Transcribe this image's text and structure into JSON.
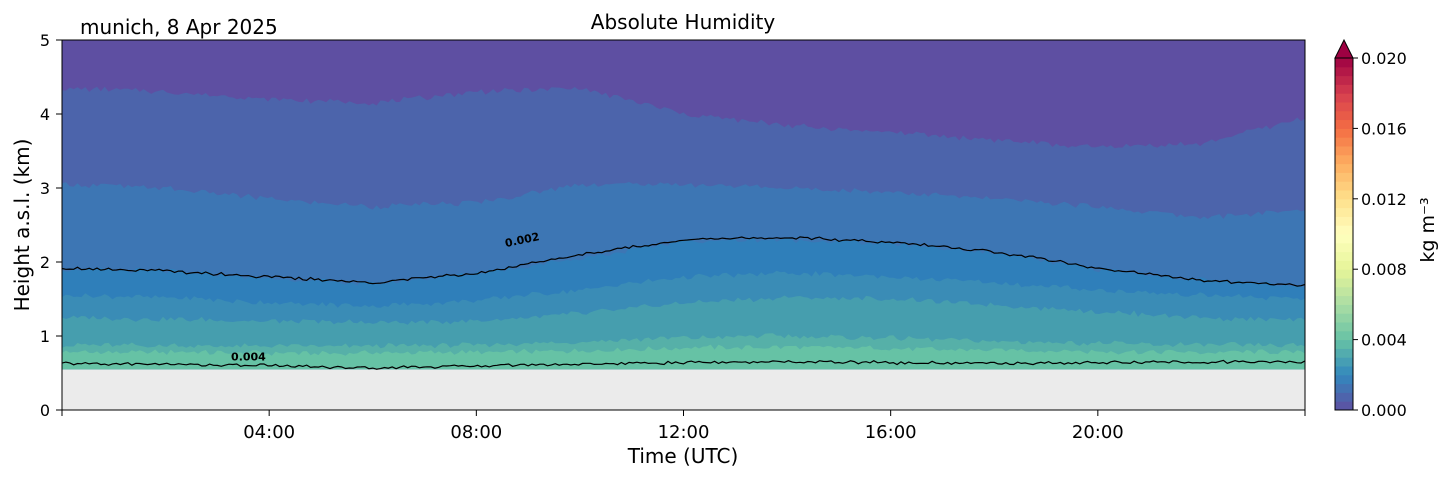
{
  "chart_data": {
    "type": "heatmap",
    "title": "Absolute Humidity",
    "subtitle": "munich, 8 Apr 2025",
    "xlabel": "Time (UTC)",
    "ylabel": "Height a.s.l. (km)",
    "xlim": [
      0,
      24
    ],
    "ylim": [
      0,
      5
    ],
    "x_ticks": [
      {
        "value": 4,
        "label": "04:00"
      },
      {
        "value": 8,
        "label": "08:00"
      },
      {
        "value": 12,
        "label": "12:00"
      },
      {
        "value": 16,
        "label": "16:00"
      },
      {
        "value": 20,
        "label": "20:00"
      }
    ],
    "y_ticks": [
      {
        "value": 0,
        "label": "0"
      },
      {
        "value": 1,
        "label": "1"
      },
      {
        "value": 2,
        "label": "2"
      },
      {
        "value": 3,
        "label": "3"
      },
      {
        "value": 4,
        "label": "4"
      },
      {
        "value": 5,
        "label": "5"
      }
    ],
    "data_bottom_km": 0.55,
    "background_color": "#ebebeb",
    "time_points": [
      0,
      2,
      4,
      6,
      8,
      10,
      12,
      14,
      16,
      18,
      20,
      22,
      24
    ],
    "layer_tops_km": [
      {
        "level": "0.0045",
        "color": "#66c2a5",
        "values": [
          0.78,
          0.78,
          0.77,
          0.77,
          0.78,
          0.8,
          0.84,
          0.85,
          0.83,
          0.81,
          0.79,
          0.78,
          0.78
        ]
      },
      {
        "level": "0.004",
        "color": "#56b0a8",
        "values": [
          0.88,
          0.87,
          0.86,
          0.86,
          0.88,
          0.92,
          0.98,
          1.0,
          0.97,
          0.93,
          0.9,
          0.88,
          0.87
        ]
      },
      {
        "level": "0.0035",
        "color": "#469eae",
        "values": [
          1.25,
          1.23,
          1.2,
          1.18,
          1.2,
          1.3,
          1.45,
          1.52,
          1.5,
          1.42,
          1.33,
          1.25,
          1.2
        ]
      },
      {
        "level": "0.003",
        "color": "#3a8cb6",
        "values": [
          1.55,
          1.52,
          1.45,
          1.4,
          1.48,
          1.62,
          1.8,
          1.85,
          1.8,
          1.72,
          1.62,
          1.55,
          1.5
        ]
      },
      {
        "level": "0.0025",
        "color": "#2f7fba",
        "values": [
          1.9,
          1.88,
          1.78,
          1.7,
          1.85,
          2.05,
          2.28,
          2.3,
          2.25,
          2.12,
          1.9,
          1.75,
          1.68
        ]
      },
      {
        "level": "0.002",
        "color": "#3d76b4",
        "values": [
          3.05,
          3.0,
          2.85,
          2.75,
          2.8,
          3.05,
          3.05,
          3.0,
          2.95,
          2.85,
          2.75,
          2.6,
          2.7
        ]
      },
      {
        "level": "0.0015",
        "color": "#4c64ab",
        "values": [
          4.35,
          4.3,
          4.2,
          4.15,
          4.3,
          4.35,
          4.0,
          3.85,
          3.75,
          3.65,
          3.55,
          3.6,
          3.95
        ]
      },
      {
        "level": "0.001",
        "color": "#5e4fa2",
        "values": [
          5,
          5,
          5,
          5,
          5,
          5,
          5,
          5,
          5,
          5,
          5,
          5,
          5
        ]
      }
    ],
    "contours": [
      {
        "label": "0.002",
        "label_time": 8.9,
        "label_height": 2.25,
        "heights_km": [
          1.92,
          1.88,
          1.8,
          1.72,
          1.85,
          2.1,
          2.3,
          2.33,
          2.27,
          2.14,
          1.92,
          1.75,
          1.68
        ]
      },
      {
        "label": "0.004",
        "label_time": 3.6,
        "label_height": 0.67,
        "heights_km": [
          0.63,
          0.62,
          0.6,
          0.57,
          0.6,
          0.62,
          0.64,
          0.65,
          0.64,
          0.63,
          0.64,
          0.65,
          0.65
        ]
      }
    ],
    "colorbar": {
      "label": "kg m⁻³",
      "min": 0,
      "max": 0.02,
      "extend": "max",
      "tick_values": [
        0,
        0.004,
        0.008,
        0.012,
        0.016,
        0.02
      ],
      "tick_labels": [
        "0.000",
        "0.004",
        "0.008",
        "0.012",
        "0.016",
        "0.020"
      ],
      "colors": [
        "#5e4fa2",
        "#3288bd",
        "#66c2a5",
        "#abdda4",
        "#e6f598",
        "#ffffbf",
        "#fee08b",
        "#fdae61",
        "#f46d43",
        "#d53e4f",
        "#9e0142"
      ]
    }
  }
}
